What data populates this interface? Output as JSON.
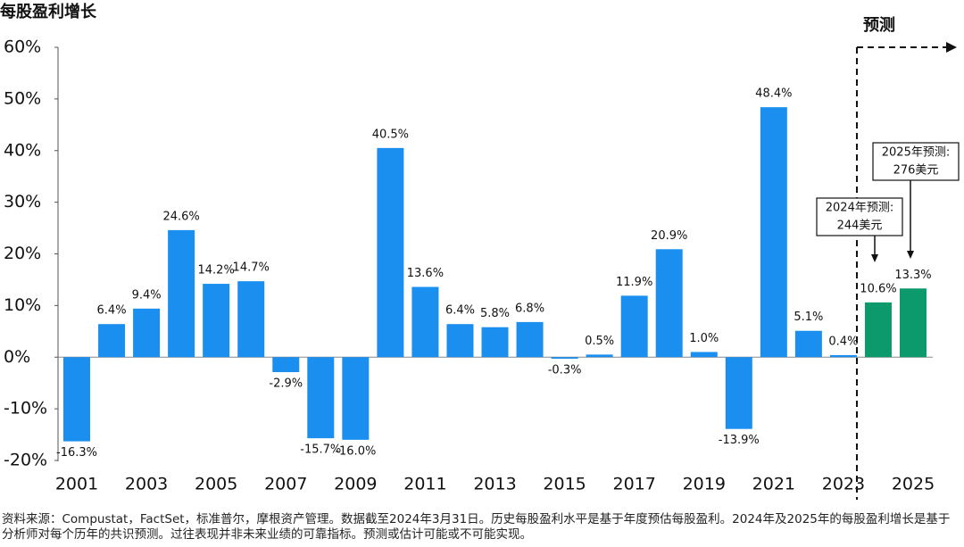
{
  "chart_data": {
    "type": "bar",
    "title": "每股盈利增长",
    "categories": [
      "2001",
      null,
      "2003",
      null,
      "2005",
      null,
      "2007",
      null,
      "2009",
      null,
      "2011",
      null,
      "2013",
      null,
      "2015",
      null,
      "2017",
      null,
      "2019",
      null,
      "2021",
      null,
      "2023",
      null,
      "2025"
    ],
    "values": [
      -16.3,
      6.4,
      9.4,
      24.6,
      14.2,
      14.7,
      -2.9,
      -15.7,
      -16.0,
      40.5,
      13.6,
      6.4,
      5.8,
      6.8,
      -0.3,
      0.5,
      11.9,
      20.9,
      1.0,
      -13.9,
      48.4,
      5.1,
      0.4,
      10.6,
      13.3
    ],
    "value_labels": [
      "-16.3%",
      "6.4%",
      "9.4%",
      "24.6%",
      "14.2%",
      "14.7%",
      "-2.9%",
      "-15.7%",
      "-16.0%",
      "40.5%",
      "13.6%",
      "6.4%",
      "5.8%",
      "6.8%",
      "-0.3%",
      "0.5%",
      "11.9%",
      "20.9%",
      "1.0%",
      "-13.9%",
      "48.4%",
      "5.1%",
      "0.4%",
      "10.6%",
      "13.3%"
    ],
    "colors": [
      "#1a8ff0",
      "#1a8ff0",
      "#1a8ff0",
      "#1a8ff0",
      "#1a8ff0",
      "#1a8ff0",
      "#1a8ff0",
      "#1a8ff0",
      "#1a8ff0",
      "#1a8ff0",
      "#1a8ff0",
      "#1a8ff0",
      "#1a8ff0",
      "#1a8ff0",
      "#1a8ff0",
      "#1a8ff0",
      "#1a8ff0",
      "#1a8ff0",
      "#1a8ff0",
      "#1a8ff0",
      "#1a8ff0",
      "#1a8ff0",
      "#1a8ff0",
      "#0c9a6c",
      "#0c9a6c"
    ],
    "ylim": [
      -20,
      60
    ],
    "yticks": [
      {
        "value": -20,
        "label": "-20%"
      },
      {
        "value": -10,
        "label": "-10%"
      },
      {
        "value": 0,
        "label": "0%"
      },
      {
        "value": 10,
        "label": "10%"
      },
      {
        "value": 20,
        "label": "20%"
      },
      {
        "value": 30,
        "label": "30%"
      },
      {
        "value": 40,
        "label": "40%"
      },
      {
        "value": 50,
        "label": "50%"
      },
      {
        "value": 60,
        "label": "60%"
      }
    ],
    "forecast_label": "预测",
    "callouts": [
      {
        "lines": [
          "2024年预测:",
          "244美元"
        ]
      },
      {
        "lines": [
          "2025年预测:",
          "276美元"
        ]
      }
    ],
    "footnote": "资料来源：Compustat，FactSet，标准普尔，摩根资产管理。数据截至2024年3月31日。历史每股盈利水平是基于年度预估每股盈利。2024年及2025年的每股盈利增长是基于分析师对每个历年的共识预测。过往表现并非未来业绩的可靠指标。预测或估计可能或不可能实现。"
  }
}
